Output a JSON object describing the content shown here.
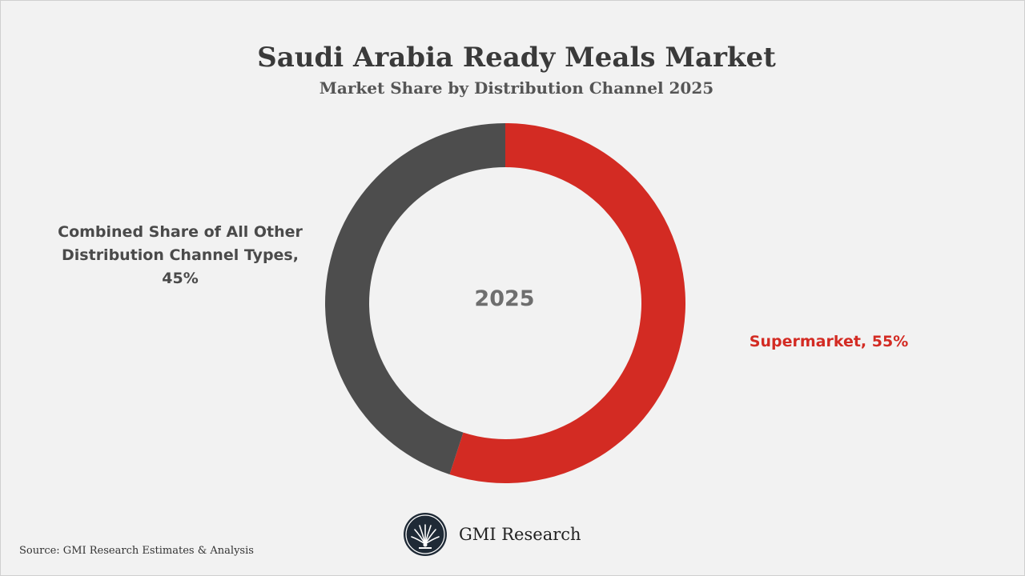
{
  "chart_data": {
    "type": "pie",
    "title": "Saudi Arabia Ready Meals Market",
    "subtitle": "Market Share by Distribution Channel 2025",
    "center_label": "2025",
    "slices": [
      {
        "label": "Supermarket",
        "value": 55,
        "display": "Supermarket, 55%"
      },
      {
        "label": "Combined Share of All Other Distribution Channel Types",
        "value": 45,
        "display": "Combined Share of All Other\nDistribution Channel Types,\n45%"
      }
    ]
  },
  "colors": {
    "supermarket": "#d32b23",
    "other": "#4d4d4d",
    "background": "#f2f2f2"
  },
  "brand": {
    "name": "GMI Research",
    "logo_icon": "gmi-research-logo"
  },
  "source": "Source: GMI Research Estimates & Analysis"
}
